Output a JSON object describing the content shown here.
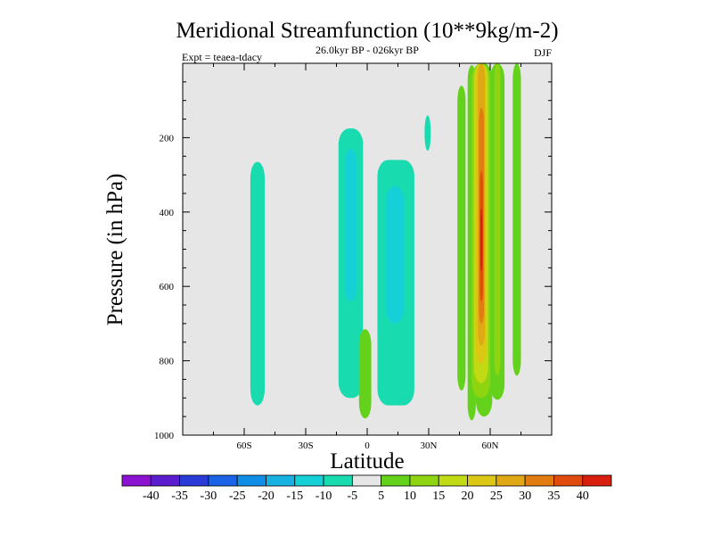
{
  "chart_data": {
    "type": "heatmap",
    "title": "Meridional Streamfunction (10**9kg/m-2)",
    "subtitle": "26.0kyr BP - 026kyr BP",
    "left_label": "Expt = teaea-tdacy",
    "right_label": "DJF",
    "xlabel": "Latitude",
    "ylabel": "Pressure (in hPa)",
    "x_range": [
      -90,
      90
    ],
    "y_range": [
      0,
      1000
    ],
    "y_inverted": true,
    "x_ticks": [
      {
        "value": -60,
        "label": "60S"
      },
      {
        "value": -30,
        "label": "30S"
      },
      {
        "value": 0,
        "label": "0"
      },
      {
        "value": 30,
        "label": "30N"
      },
      {
        "value": 60,
        "label": "60N"
      }
    ],
    "y_ticks": [
      {
        "value": 200,
        "label": "200"
      },
      {
        "value": 400,
        "label": "400"
      },
      {
        "value": 600,
        "label": "600"
      },
      {
        "value": 800,
        "label": "800"
      },
      {
        "value": 1000,
        "label": "1000"
      }
    ],
    "background_color": "#e6e6e6",
    "colorbar": {
      "levels": [
        "-40",
        "-35",
        "-30",
        "-25",
        "-20",
        "-15",
        "-10",
        "-5",
        "5",
        "10",
        "15",
        "20",
        "25",
        "30",
        "35",
        "40"
      ],
      "colors": [
        "#8c12d2",
        "#5a1ccc",
        "#2a3ad6",
        "#1a62e6",
        "#0f8ee8",
        "#18b2e2",
        "#16d0d8",
        "#18dcb0",
        "#e6e6e6",
        "#64d21a",
        "#8ed410",
        "#c0da14",
        "#dcc814",
        "#e0a814",
        "#e07c10",
        "#e04a0c",
        "#d81e0c"
      ]
    },
    "regions": [
      {
        "value": -10,
        "lon_min": -57,
        "lon_max": -50,
        "p_top": 265,
        "p_bottom": 920
      },
      {
        "value": -10,
        "lon_min": -14,
        "lon_max": -2,
        "p_top": 175,
        "p_bottom": 900
      },
      {
        "value": -15,
        "lon_min": -11,
        "lon_max": -5,
        "p_top": 230,
        "p_bottom": 640
      },
      {
        "value": -10,
        "lon_min": 5,
        "lon_max": 23,
        "p_top": 260,
        "p_bottom": 920
      },
      {
        "value": -15,
        "lon_min": 9,
        "lon_max": 18,
        "p_top": 330,
        "p_bottom": 700
      },
      {
        "value": -10,
        "lon_min": 28,
        "lon_max": 31,
        "p_top": 140,
        "p_bottom": 235
      },
      {
        "value": 5,
        "lon_min": -4,
        "lon_max": 2,
        "p_top": 715,
        "p_bottom": 955
      },
      {
        "value": 5,
        "lon_min": 44,
        "lon_max": 48,
        "p_top": 60,
        "p_bottom": 880
      },
      {
        "value": 5,
        "lon_min": 49,
        "lon_max": 53,
        "p_top": 5,
        "p_bottom": 960
      },
      {
        "value": 5,
        "lon_min": 53,
        "lon_max": 61,
        "p_top": 0,
        "p_bottom": 950
      },
      {
        "value": 5,
        "lon_min": 60,
        "lon_max": 67,
        "p_top": 0,
        "p_bottom": 905
      },
      {
        "value": 5,
        "lon_min": 71,
        "lon_max": 75,
        "p_top": 0,
        "p_bottom": 840
      },
      {
        "value": 10,
        "lon_min": 51,
        "lon_max": 60,
        "p_top": 0,
        "p_bottom": 900
      },
      {
        "value": 10,
        "lon_min": 62,
        "lon_max": 65,
        "p_top": 0,
        "p_bottom": 840
      },
      {
        "value": 15,
        "lon_min": 52,
        "lon_max": 59,
        "p_top": 0,
        "p_bottom": 860
      },
      {
        "value": 20,
        "lon_min": 53,
        "lon_max": 58,
        "p_top": 0,
        "p_bottom": 810
      },
      {
        "value": 25,
        "lon_min": 54,
        "lon_max": 57.5,
        "p_top": 0,
        "p_bottom": 760
      },
      {
        "value": 30,
        "lon_min": 54.5,
        "lon_max": 57,
        "p_top": 120,
        "p_bottom": 700
      },
      {
        "value": 35,
        "lon_min": 55,
        "lon_max": 56.5,
        "p_top": 290,
        "p_bottom": 640
      },
      {
        "value": 40,
        "lon_min": 55.2,
        "lon_max": 56.2,
        "p_top": 390,
        "p_bottom": 560
      }
    ]
  }
}
